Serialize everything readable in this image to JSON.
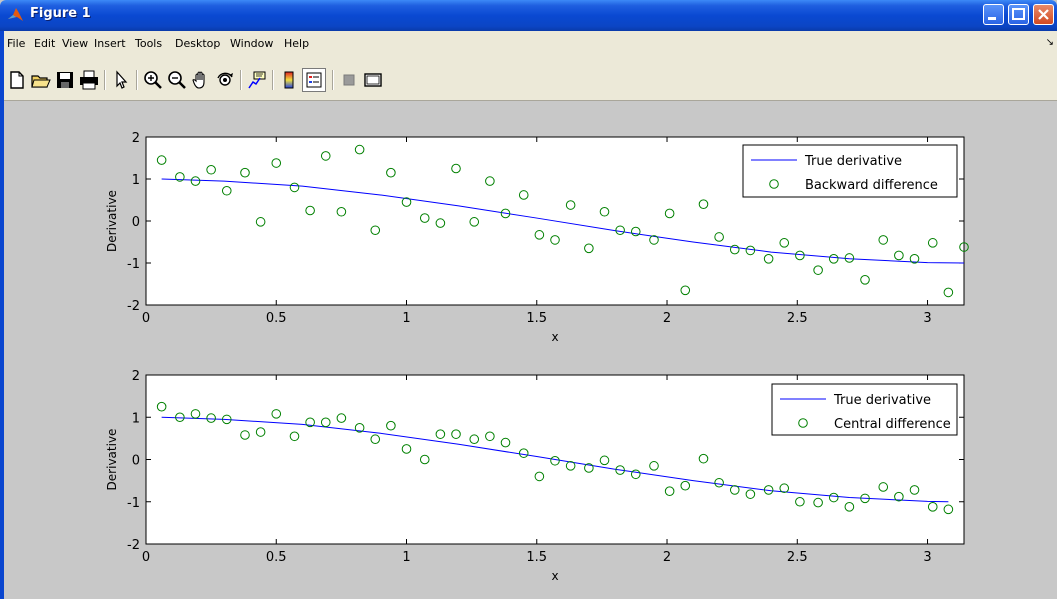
{
  "window": {
    "title": "Figure 1"
  },
  "menu": {
    "items": [
      "File",
      "Edit",
      "View",
      "Insert",
      "Tools",
      "Desktop",
      "Window",
      "Help"
    ]
  },
  "toolbar": {
    "buttons": [
      "new-file-icon",
      "open-folder-icon",
      "save-icon",
      "print-icon",
      "pointer-icon",
      "zoom-in-icon",
      "zoom-out-icon",
      "pan-hand-icon",
      "rotate-3d-icon",
      "data-cursor-icon",
      "colorbar-icon",
      "legend-icon",
      "hide-plot-tools-icon",
      "show-plot-tools-icon"
    ]
  },
  "chart_data": [
    {
      "type": "scatter",
      "xlabel": "x",
      "ylabel": "Derivative",
      "xlim": [
        0,
        3.14
      ],
      "ylim": [
        -2,
        2
      ],
      "xticks": [
        "0",
        "0.5",
        "1",
        "1.5",
        "2",
        "2.5",
        "3"
      ],
      "yticks": [
        "-2",
        "-1",
        "0",
        "1",
        "2"
      ],
      "grid": false,
      "legend_position": "top-right",
      "series": [
        {
          "name": "True derivative",
          "style": "line",
          "color": "#0000ff",
          "x": [
            0.06,
            0.3,
            0.6,
            0.9,
            1.2,
            1.5,
            1.8,
            2.1,
            2.4,
            2.7,
            3.0,
            3.14
          ],
          "y": [
            1.0,
            0.95,
            0.83,
            0.62,
            0.36,
            0.07,
            -0.23,
            -0.5,
            -0.74,
            -0.9,
            -0.99,
            -1.0
          ]
        },
        {
          "name": "Backward difference",
          "style": "marker",
          "color": "#008000",
          "x": [
            0.06,
            0.13,
            0.19,
            0.25,
            0.31,
            0.38,
            0.44,
            0.5,
            0.57,
            0.63,
            0.69,
            0.75,
            0.82,
            0.88,
            0.94,
            1.0,
            1.07,
            1.13,
            1.19,
            1.26,
            1.32,
            1.38,
            1.45,
            1.51,
            1.57,
            1.63,
            1.7,
            1.76,
            1.82,
            1.88,
            1.95,
            2.01,
            2.07,
            2.14,
            2.2,
            2.26,
            2.32,
            2.39,
            2.45,
            2.51,
            2.58,
            2.64,
            2.7,
            2.76,
            2.83,
            2.89,
            2.95,
            3.02,
            3.08,
            3.14
          ],
          "y": [
            1.45,
            1.05,
            0.95,
            1.22,
            0.72,
            1.15,
            -0.02,
            1.38,
            0.8,
            0.25,
            1.55,
            0.22,
            1.7,
            -0.22,
            1.15,
            0.45,
            0.07,
            -0.05,
            1.25,
            -0.02,
            0.95,
            0.18,
            0.62,
            -0.33,
            -0.45,
            0.38,
            -0.65,
            0.22,
            -0.22,
            -0.25,
            -0.45,
            0.18,
            -1.65,
            0.4,
            -0.38,
            -0.68,
            -0.7,
            -0.9,
            -0.52,
            -0.82,
            -1.17,
            -0.9,
            -0.88,
            -1.4,
            -0.45,
            -0.82,
            -0.9,
            -0.52,
            -1.7,
            -0.62
          ]
        }
      ]
    },
    {
      "type": "scatter",
      "xlabel": "x",
      "ylabel": "Derivative",
      "xlim": [
        0,
        3.14
      ],
      "ylim": [
        -2,
        2
      ],
      "xticks": [
        "0",
        "0.5",
        "1",
        "1.5",
        "2",
        "2.5",
        "3"
      ],
      "yticks": [
        "-2",
        "-1",
        "0",
        "1",
        "2"
      ],
      "grid": false,
      "legend_position": "top-right",
      "series": [
        {
          "name": "True derivative",
          "style": "line",
          "color": "#0000ff",
          "x": [
            0.06,
            0.3,
            0.6,
            0.9,
            1.2,
            1.5,
            1.8,
            2.1,
            2.4,
            2.7,
            3.0,
            3.08
          ],
          "y": [
            1.0,
            0.95,
            0.83,
            0.62,
            0.36,
            0.07,
            -0.23,
            -0.5,
            -0.74,
            -0.9,
            -0.99,
            -1.0
          ]
        },
        {
          "name": "Central difference",
          "style": "marker",
          "color": "#008000",
          "x": [
            0.06,
            0.13,
            0.19,
            0.25,
            0.31,
            0.38,
            0.44,
            0.5,
            0.57,
            0.63,
            0.69,
            0.75,
            0.82,
            0.88,
            0.94,
            1.0,
            1.07,
            1.13,
            1.19,
            1.26,
            1.32,
            1.38,
            1.45,
            1.51,
            1.57,
            1.63,
            1.7,
            1.76,
            1.82,
            1.88,
            1.95,
            2.01,
            2.07,
            2.14,
            2.2,
            2.26,
            2.32,
            2.39,
            2.45,
            2.51,
            2.58,
            2.64,
            2.7,
            2.76,
            2.83,
            2.89,
            2.95,
            3.02,
            3.08
          ],
          "y": [
            1.25,
            1.0,
            1.08,
            0.98,
            0.95,
            0.58,
            0.65,
            1.08,
            0.55,
            0.88,
            0.88,
            0.98,
            0.75,
            0.48,
            0.8,
            0.25,
            0.0,
            0.6,
            0.6,
            0.48,
            0.55,
            0.4,
            0.15,
            -0.4,
            -0.03,
            -0.15,
            -0.2,
            -0.02,
            -0.25,
            -0.35,
            -0.15,
            -0.75,
            -0.62,
            0.02,
            -0.55,
            -0.72,
            -0.82,
            -0.72,
            -0.68,
            -1.0,
            -1.02,
            -0.9,
            -1.12,
            -0.92,
            -0.65,
            -0.88,
            -0.72,
            -1.12,
            -1.18
          ]
        }
      ]
    }
  ]
}
